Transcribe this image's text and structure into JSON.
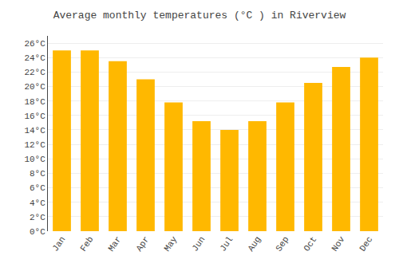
{
  "chart_data": {
    "type": "bar",
    "title": "Average monthly temperatures (°C ) in Riverview",
    "categories": [
      "Jan",
      "Feb",
      "Mar",
      "Apr",
      "May",
      "Jun",
      "Jul",
      "Aug",
      "Sep",
      "Oct",
      "Nov",
      "Dec"
    ],
    "values": [
      25.0,
      25.0,
      23.5,
      21.0,
      17.8,
      15.2,
      14.0,
      15.2,
      17.8,
      20.5,
      22.7,
      24.0
    ],
    "color": "#FFB800",
    "ylim": [
      0,
      27
    ],
    "yticks": [
      {
        "value": 0,
        "label": "0°C"
      },
      {
        "value": 2,
        "label": "2°C"
      },
      {
        "value": 4,
        "label": "4°C"
      },
      {
        "value": 6,
        "label": "6°C"
      },
      {
        "value": 8,
        "label": "8°C"
      },
      {
        "value": 10,
        "label": "10°C"
      },
      {
        "value": 12,
        "label": "12°C"
      },
      {
        "value": 14,
        "label": "14°C"
      },
      {
        "value": 16,
        "label": "16°C"
      },
      {
        "value": 18,
        "label": "18°C"
      },
      {
        "value": 20,
        "label": "20°C"
      },
      {
        "value": 22,
        "label": "22°C"
      },
      {
        "value": 24,
        "label": "24°C"
      },
      {
        "value": 26,
        "label": "26°C"
      }
    ],
    "grid": true
  }
}
